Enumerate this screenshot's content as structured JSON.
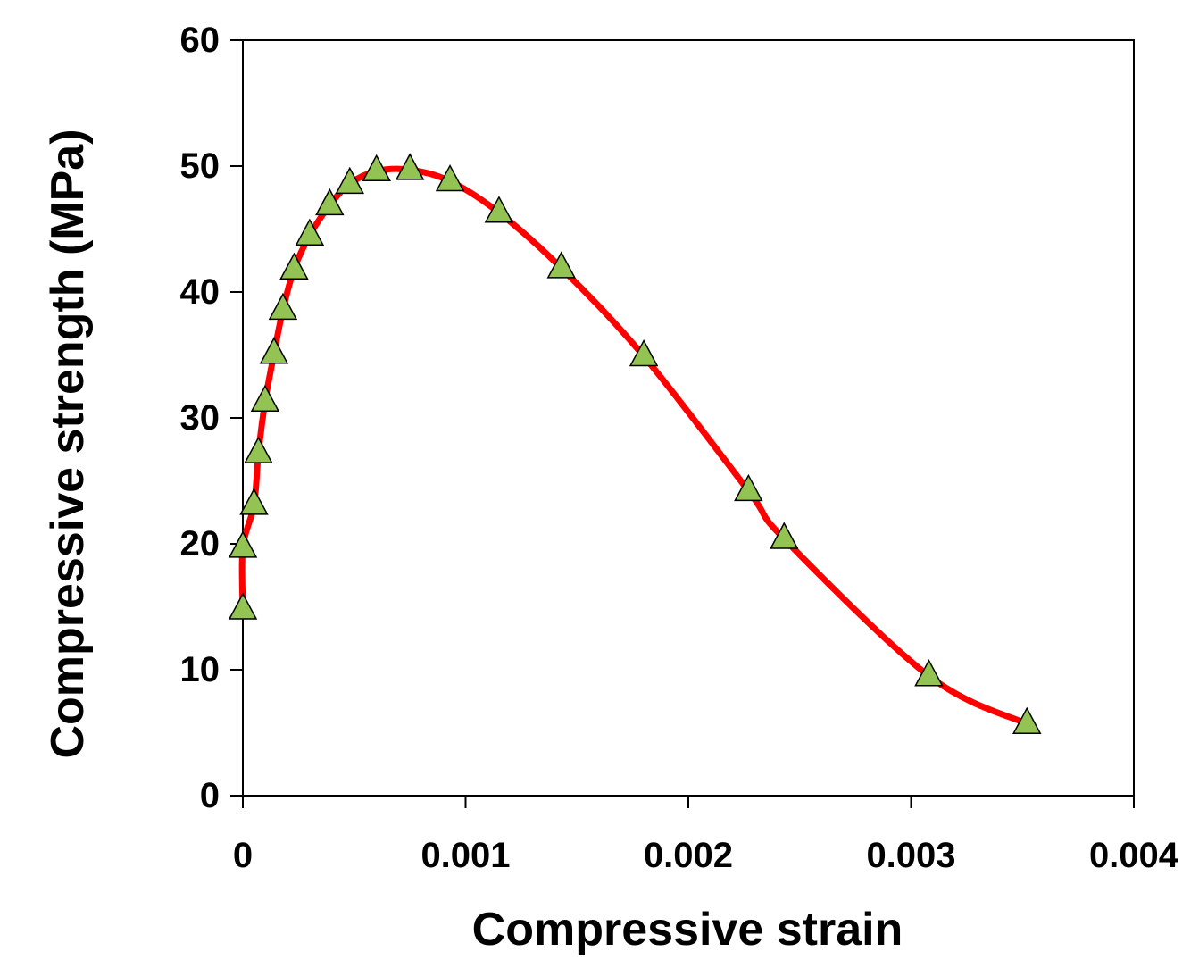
{
  "chart_data": {
    "type": "line",
    "title": "",
    "xlabel": "Compressive strain",
    "ylabel": "Compressive strength (MPa)",
    "xlim": [
      0,
      0.004
    ],
    "ylim": [
      0,
      60
    ],
    "x_ticks": [
      "0",
      "0.001",
      "0.002",
      "0.003",
      "0.004"
    ],
    "y_ticks": [
      "0",
      "10",
      "20",
      "30",
      "40",
      "50",
      "60"
    ],
    "grid": false,
    "legend": "none",
    "series": [
      {
        "line_color": "#ff0000",
        "marker": "triangle",
        "marker_color": "#92c353",
        "marker_edge_color": "#000000",
        "points": [
          {
            "x": 0.0,
            "y": 14.8
          },
          {
            "x": 0.0,
            "y": 19.7
          },
          {
            "x": 5e-05,
            "y": 23.1
          },
          {
            "x": 7e-05,
            "y": 27.2
          },
          {
            "x": 0.0001,
            "y": 31.3
          },
          {
            "x": 0.00014,
            "y": 35.1
          },
          {
            "x": 0.00018,
            "y": 38.6
          },
          {
            "x": 0.00023,
            "y": 41.8
          },
          {
            "x": 0.0003,
            "y": 44.5
          },
          {
            "x": 0.00039,
            "y": 46.9
          },
          {
            "x": 0.00048,
            "y": 48.6
          },
          {
            "x": 0.0006,
            "y": 49.6
          },
          {
            "x": 0.00075,
            "y": 49.7
          },
          {
            "x": 0.00093,
            "y": 48.8
          },
          {
            "x": 0.00115,
            "y": 46.3
          },
          {
            "x": 0.00143,
            "y": 41.9
          },
          {
            "x": 0.0018,
            "y": 34.9
          },
          {
            "x": 0.00227,
            "y": 24.2
          },
          {
            "x": 0.00243,
            "y": 20.4
          },
          {
            "x": 0.00308,
            "y": 9.5
          },
          {
            "x": 0.00352,
            "y": 5.7
          }
        ]
      }
    ]
  }
}
